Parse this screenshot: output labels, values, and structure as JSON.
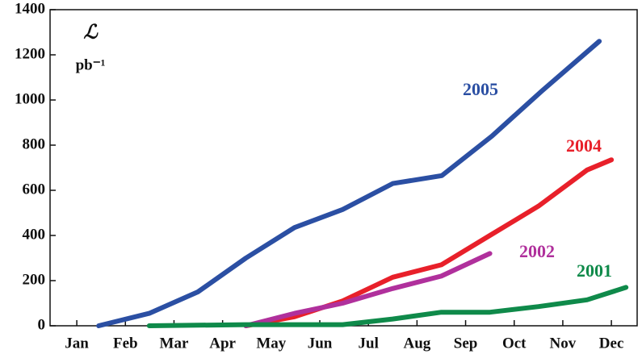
{
  "chart_data": {
    "type": "line",
    "ylabel": "ℒ",
    "yunit": "pb⁻¹",
    "xlim": [
      0.45,
      12.53
    ],
    "ylim": [
      0,
      1400
    ],
    "xticks": [
      {
        "value": 1,
        "label": "Jan"
      },
      {
        "value": 2,
        "label": "Feb"
      },
      {
        "value": 3,
        "label": "Mar"
      },
      {
        "value": 4,
        "label": "Apr"
      },
      {
        "value": 5,
        "label": "May"
      },
      {
        "value": 6,
        "label": "Jun"
      },
      {
        "value": 7,
        "label": "Jul"
      },
      {
        "value": 8,
        "label": "Aug"
      },
      {
        "value": 9,
        "label": "Sep"
      },
      {
        "value": 10,
        "label": "Oct"
      },
      {
        "value": 11,
        "label": "Nov"
      },
      {
        "value": 12,
        "label": "Dec"
      }
    ],
    "yticks": [
      0,
      200,
      400,
      600,
      800,
      1000,
      1200,
      1400
    ],
    "series": [
      {
        "name": "2005",
        "color": "#2b4fa3",
        "x": [
          1.45,
          2.49,
          3.49,
          4.48,
          5.48,
          6.47,
          7.5,
          8.51,
          9.54,
          10.57,
          11.75
        ],
        "values": [
          0,
          55,
          150,
          300,
          435,
          515,
          630,
          665,
          840,
          1040,
          1260
        ]
      },
      {
        "name": "2004",
        "color": "#e8202a",
        "x": [
          4.48,
          5.48,
          6.47,
          7.5,
          8.5,
          9.5,
          10.5,
          11.5,
          12.0
        ],
        "values": [
          0,
          40,
          110,
          215,
          270,
          400,
          530,
          690,
          735
        ]
      },
      {
        "name": "2002",
        "color": "#b0309c",
        "x": [
          4.48,
          5.48,
          6.47,
          7.5,
          8.5,
          9.5
        ],
        "values": [
          0,
          55,
          100,
          165,
          220,
          320
        ]
      },
      {
        "name": "2001",
        "color": "#0f8a4a",
        "x": [
          2.49,
          4.48,
          5.48,
          6.47,
          7.5,
          8.5,
          9.5,
          10.5,
          11.5,
          12.3
        ],
        "values": [
          0,
          5,
          5,
          5,
          30,
          60,
          60,
          85,
          115,
          170
        ]
      }
    ]
  }
}
